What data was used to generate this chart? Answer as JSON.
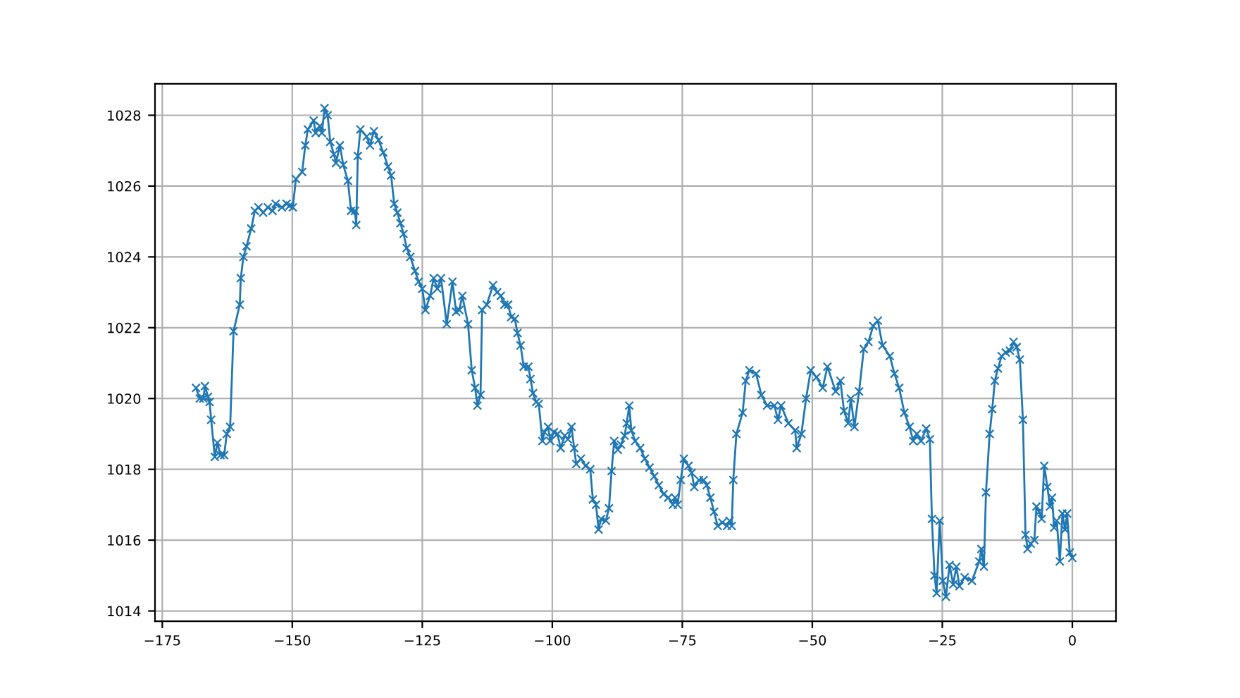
{
  "chart_data": {
    "type": "line",
    "marker": "cross",
    "grid": true,
    "line_style": "solid",
    "xlim": [
      -176.4,
      8.4
    ],
    "ylim": [
      1013.71,
      1028.89
    ],
    "xticks": [
      {
        "value": -175,
        "label": "−175"
      },
      {
        "value": -150,
        "label": "−150"
      },
      {
        "value": -125,
        "label": "−125"
      },
      {
        "value": -100,
        "label": "−100"
      },
      {
        "value": -75,
        "label": "−75"
      },
      {
        "value": -50,
        "label": "−50"
      },
      {
        "value": -25,
        "label": "−25"
      },
      0
    ],
    "yticks": [
      1014,
      1016,
      1018,
      1020,
      1022,
      1024,
      1026,
      1028
    ],
    "series": [
      {
        "color": "#1f77b4",
        "x": [
          -168.5,
          -167.8,
          -167.1,
          -166.8,
          -166.2,
          -165.9,
          -165.6,
          -164.9,
          -164.4,
          -163.8,
          -163.1,
          -162.6,
          -161.95,
          -161.3,
          -160.1,
          -159.9,
          -159.4,
          -158.8,
          -157.9,
          -157.2,
          -156.5,
          -155.6,
          -154.7,
          -153.8,
          -153.2,
          -152.0,
          -151.1,
          -150.5,
          -149.9,
          -149.3,
          -148.1,
          -147.5,
          -147.0,
          -145.9,
          -145.5,
          -144.7,
          -144.3,
          -143.8,
          -143.2,
          -142.7,
          -142.0,
          -141.6,
          -140.85,
          -140.2,
          -139.3,
          -138.7,
          -137.95,
          -137.7,
          -137.4,
          -136.9,
          -135.7,
          -135.05,
          -134.3,
          -133.4,
          -132.5,
          -131.6,
          -131.0,
          -130.4,
          -129.8,
          -129.2,
          -128.6,
          -128.0,
          -127.3,
          -126.4,
          -125.7,
          -125.0,
          -124.4,
          -123.5,
          -122.8,
          -122.1,
          -121.4,
          -120.3,
          -119.2,
          -118.5,
          -117.9,
          -117.3,
          -116.2,
          -115.49,
          -114.85,
          -114.4,
          -113.8,
          -113.5,
          -112.6,
          -111.4,
          -110.6,
          -109.9,
          -109.2,
          -108.5,
          -107.9,
          -107.2,
          -106.7,
          -106.1,
          -105.5,
          -104.6,
          -104.2,
          -103.7,
          -103.1,
          -102.6,
          -101.9,
          -101.5,
          -100.8,
          -100.4,
          -99.7,
          -99.0,
          -98.4,
          -97.6,
          -97.0,
          -96.3,
          -95.8,
          -95.4,
          -94.5,
          -93.6,
          -92.7,
          -92.2,
          -91.6,
          -91.1,
          -90.6,
          -89.7,
          -89.1,
          -88.6,
          -88.1,
          -87.4,
          -86.8,
          -86.1,
          -85.7,
          -85.2,
          -84.8,
          -84.05,
          -83.1,
          -82.2,
          -81.3,
          -80.4,
          -79.5,
          -78.6,
          -77.7,
          -76.8,
          -76.4,
          -75.9,
          -75.3,
          -74.7,
          -73.8,
          -73.2,
          -72.7,
          -71.8,
          -70.9,
          -70.3,
          -69.6,
          -68.9,
          -68.2,
          -67.3,
          -66.4,
          -65.9,
          -65.5,
          -65.2,
          -64.6,
          -63.4,
          -62.8,
          -62.1,
          -60.8,
          -59.8,
          -58.7,
          -57.3,
          -56.6,
          -56.0,
          -54.6,
          -53.3,
          -53.0,
          -52.1,
          -51.2,
          -50.3,
          -49.2,
          -48.0,
          -47.1,
          -45.5,
          -44.6,
          -43.9,
          -43.1,
          -42.6,
          -41.9,
          -41.0,
          -40.1,
          -39.2,
          -38.3,
          -37.4,
          -36.5,
          -35.1,
          -34.2,
          -33.3,
          -32.3,
          -31.3,
          -30.6,
          -29.9,
          -29.1,
          -28.1,
          -27.4,
          -27.0,
          -26.5,
          -26.1,
          -25.5,
          -24.9,
          -24.3,
          -23.6,
          -22.9,
          -22.3,
          -21.7,
          -20.7,
          -19.3,
          -17.9,
          -17.5,
          -17.0,
          -16.6,
          -15.9,
          -15.4,
          -14.9,
          -14.3,
          -13.6,
          -12.8,
          -12.0,
          -11.3,
          -10.7,
          -10.1,
          -9.5,
          -9.0,
          -8.6,
          -8.0,
          -7.3,
          -6.9,
          -6.4,
          -5.9,
          -5.4,
          -4.8,
          -4.3,
          -3.9,
          -3.5,
          -3.0,
          -2.4,
          -1.9,
          -1.4,
          -1.0,
          -0.5,
          0
        ],
        "values": [
          1020.3,
          1020.0,
          1020.0,
          1020.35,
          1020.05,
          1019.9,
          1019.4,
          1018.35,
          1018.75,
          1018.4,
          1018.4,
          1019.0,
          1019.2,
          1021.9,
          1022.65,
          1023.4,
          1024.0,
          1024.3,
          1024.8,
          1025.3,
          1025.4,
          1025.25,
          1025.4,
          1025.3,
          1025.5,
          1025.4,
          1025.5,
          1025.45,
          1025.4,
          1026.2,
          1026.4,
          1027.15,
          1027.6,
          1027.85,
          1027.5,
          1027.7,
          1027.5,
          1028.2,
          1028.0,
          1027.25,
          1026.9,
          1026.65,
          1027.15,
          1026.6,
          1026.15,
          1025.3,
          1025.3,
          1024.9,
          1026.85,
          1027.6,
          1027.4,
          1027.15,
          1027.55,
          1027.3,
          1026.95,
          1026.55,
          1026.3,
          1025.5,
          1025.25,
          1024.95,
          1024.65,
          1024.25,
          1024.0,
          1023.6,
          1023.3,
          1023.1,
          1022.5,
          1022.9,
          1023.4,
          1023.1,
          1023.4,
          1022.1,
          1023.3,
          1022.45,
          1022.5,
          1022.9,
          1022.1,
          1020.8,
          1020.3,
          1019.8,
          1020.1,
          1022.5,
          1022.65,
          1023.2,
          1023.0,
          1022.9,
          1022.65,
          1022.65,
          1022.3,
          1022.25,
          1021.85,
          1021.5,
          1020.9,
          1020.9,
          1020.55,
          1020.15,
          1019.9,
          1019.85,
          1018.8,
          1019.05,
          1019.2,
          1018.8,
          1019.05,
          1019.0,
          1018.6,
          1018.95,
          1018.85,
          1019.2,
          1018.6,
          1018.15,
          1018.3,
          1018.1,
          1018.0,
          1017.15,
          1017.0,
          1016.3,
          1016.6,
          1016.55,
          1016.9,
          1017.95,
          1018.8,
          1018.55,
          1018.7,
          1018.95,
          1019.3,
          1019.8,
          1019.1,
          1018.8,
          1018.6,
          1018.3,
          1018.05,
          1017.8,
          1017.55,
          1017.3,
          1017.2,
          1017.0,
          1017.2,
          1017.0,
          1017.7,
          1018.3,
          1018.1,
          1017.9,
          1017.5,
          1017.7,
          1017.7,
          1017.55,
          1017.2,
          1016.8,
          1016.4,
          1016.5,
          1016.4,
          1016.55,
          1016.4,
          1017.7,
          1019.0,
          1019.6,
          1020.5,
          1020.8,
          1020.7,
          1020.1,
          1019.8,
          1019.8,
          1019.4,
          1019.8,
          1019.3,
          1019.1,
          1018.6,
          1019.0,
          1020.0,
          1020.8,
          1020.6,
          1020.3,
          1020.9,
          1020.2,
          1020.5,
          1019.65,
          1019.3,
          1020.0,
          1019.2,
          1020.2,
          1021.4,
          1021.6,
          1022.05,
          1022.2,
          1021.5,
          1021.2,
          1020.7,
          1020.3,
          1019.6,
          1019.2,
          1018.8,
          1019.0,
          1018.8,
          1019.15,
          1018.85,
          1016.6,
          1015.0,
          1014.5,
          1016.55,
          1014.85,
          1014.4,
          1015.3,
          1014.75,
          1015.25,
          1014.7,
          1014.95,
          1014.85,
          1015.4,
          1015.75,
          1015.25,
          1017.35,
          1019.0,
          1019.7,
          1020.5,
          1020.85,
          1021.2,
          1021.3,
          1021.35,
          1021.6,
          1021.45,
          1021.1,
          1019.4,
          1016.15,
          1015.75,
          1015.9,
          1016.0,
          1016.95,
          1016.8,
          1016.6,
          1018.1,
          1017.5,
          1016.95,
          1017.2,
          1016.35,
          1016.55,
          1015.4,
          1016.75,
          1016.3,
          1016.75,
          1015.65,
          1015.5
        ]
      }
    ]
  }
}
